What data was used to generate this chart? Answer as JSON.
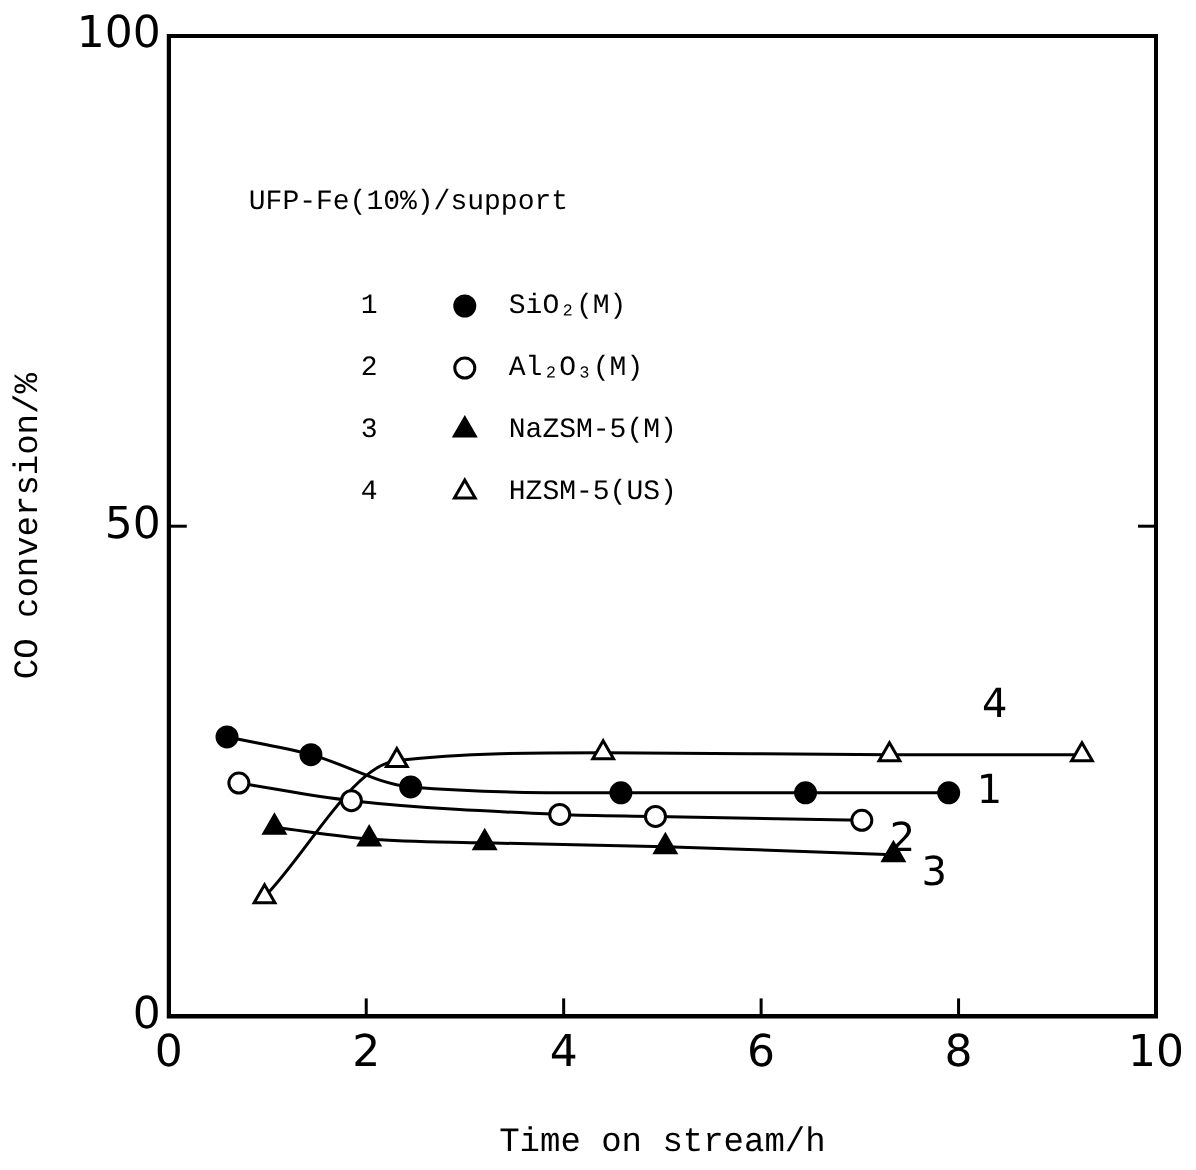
{
  "chart_data": {
    "type": "line",
    "xlabel": "Time on stream/h",
    "ylabel": "CO conversion/%",
    "legend_title": "UFP-Fe(10%)/support",
    "xlim": [
      0,
      10
    ],
    "xticks": [
      0,
      2,
      4,
      6,
      8,
      10
    ],
    "ylim": [
      0,
      100
    ],
    "yticks": [
      0,
      50,
      100
    ],
    "legend": "top left",
    "line_style": "solid",
    "series": [
      {
        "name": "SiO₂(M)",
        "color": "#000000",
        "marker": "circle",
        "x": [
          0.59,
          1.44,
          2.45,
          4.58,
          6.45,
          7.9
        ],
        "values": [
          28.5,
          26.7,
          23.4,
          22.8,
          22.8,
          22.8
        ]
      },
      {
        "name": "Al₂O₃(M)",
        "color": "#000000",
        "marker": "circle",
        "x": [
          0.71,
          1.85,
          3.96,
          4.93,
          7.02
        ],
        "values": [
          23.8,
          22.0,
          20.6,
          20.4,
          20.0
        ]
      },
      {
        "name": "NaZSM-5(M)",
        "color": "#000000",
        "marker": "triangle",
        "x": [
          1.07,
          2.03,
          3.2,
          5.03,
          7.34
        ],
        "values": [
          19.3,
          18.1,
          17.7,
          17.3,
          16.5
        ]
      },
      {
        "name": "HZSM-5(US)",
        "color": "#000000",
        "marker": "triangle",
        "x": [
          0.97,
          2.31,
          4.4,
          7.3,
          9.25
        ],
        "values": [
          12.2,
          26.1,
          26.9,
          26.7,
          26.7
        ]
      }
    ],
    "annotations": [
      "1",
      "2",
      "3",
      "4"
    ]
  }
}
